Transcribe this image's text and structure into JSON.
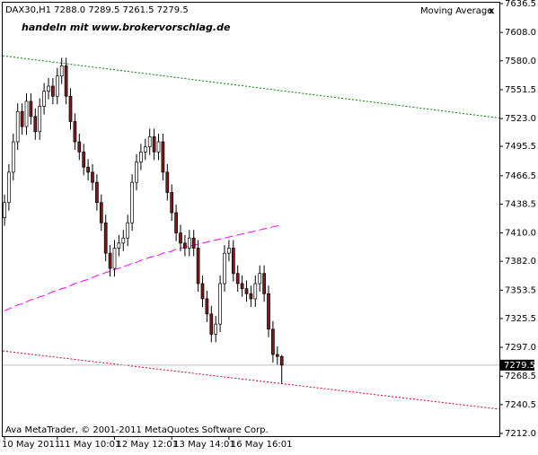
{
  "chart_data": {
    "type": "candlestick",
    "title": "DAX30,H1  7288.0 7289.5 7261.5 7279.5",
    "annotation": "handeln mit www.brokervorschlag.de",
    "annotation_color": "#ff9900",
    "indicator_close": "x",
    "copyright": "Ava MetaTrader, © 2001-2011 MetaQuotes Software Corp.",
    "categories": [
      "10 May 2011",
      null,
      null,
      null,
      null,
      null,
      null,
      null,
      null,
      null,
      null,
      null,
      "11 May 10:01",
      null,
      null,
      null,
      null,
      null,
      null,
      null,
      null,
      null,
      null,
      null,
      null,
      "12 May 12:01",
      null,
      null,
      null,
      null,
      null,
      null,
      null,
      null,
      null,
      null,
      null,
      null,
      "13 May 14:01",
      null,
      null,
      null,
      null,
      null,
      null,
      null,
      null,
      null,
      null,
      null,
      null,
      "16 May 16:01",
      null,
      null,
      null,
      null,
      null,
      null,
      null,
      null,
      null,
      null,
      null,
      null
    ],
    "open": [
      7425,
      7440,
      7470,
      7500,
      7530,
      7515,
      7540,
      7525,
      7510,
      7535,
      7550,
      7555,
      7545,
      7565,
      7575,
      7545,
      7520,
      7500,
      7490,
      7475,
      7470,
      7460,
      7440,
      7420,
      7390,
      7375,
      7395,
      7400,
      7405,
      7420,
      7460,
      7480,
      7490,
      7495,
      7505,
      7490,
      7500,
      7470,
      7450,
      7430,
      7410,
      7400,
      7395,
      7405,
      7395,
      7360,
      7345,
      7330,
      7310,
      7320,
      7360,
      7390,
      7395,
      7370,
      7360,
      7355,
      7350,
      7345,
      7360,
      7370,
      7350,
      7315,
      7290,
      7288
    ],
    "high": [
      7448,
      7478,
      7508,
      7538,
      7538,
      7548,
      7548,
      7533,
      7543,
      7558,
      7563,
      7563,
      7573,
      7583,
      7583,
      7553,
      7528,
      7508,
      7498,
      7483,
      7478,
      7468,
      7448,
      7428,
      7398,
      7403,
      7408,
      7413,
      7428,
      7468,
      7488,
      7498,
      7503,
      7513,
      7513,
      7508,
      7508,
      7478,
      7458,
      7438,
      7418,
      7408,
      7413,
      7413,
      7403,
      7368,
      7353,
      7338,
      7328,
      7368,
      7398,
      7403,
      7403,
      7378,
      7368,
      7363,
      7358,
      7368,
      7378,
      7378,
      7358,
      7323,
      7298,
      7289.5
    ],
    "low": [
      7417,
      7432,
      7462,
      7492,
      7507,
      7507,
      7517,
      7502,
      7502,
      7527,
      7542,
      7537,
      7537,
      7557,
      7537,
      7512,
      7492,
      7482,
      7467,
      7462,
      7452,
      7432,
      7412,
      7382,
      7367,
      7367,
      7387,
      7392,
      7397,
      7412,
      7452,
      7472,
      7482,
      7487,
      7482,
      7482,
      7462,
      7442,
      7422,
      7402,
      7392,
      7387,
      7387,
      7387,
      7352,
      7337,
      7322,
      7302,
      7302,
      7312,
      7352,
      7382,
      7362,
      7352,
      7347,
      7342,
      7337,
      7337,
      7352,
      7342,
      7307,
      7282,
      7280,
      7261.5
    ],
    "close": [
      7440,
      7470,
      7500,
      7530,
      7515,
      7540,
      7525,
      7510,
      7535,
      7550,
      7555,
      7545,
      7565,
      7575,
      7545,
      7520,
      7500,
      7490,
      7475,
      7470,
      7460,
      7440,
      7420,
      7390,
      7375,
      7395,
      7400,
      7405,
      7420,
      7460,
      7480,
      7490,
      7495,
      7505,
      7490,
      7500,
      7470,
      7450,
      7430,
      7410,
      7400,
      7395,
      7405,
      7395,
      7360,
      7345,
      7330,
      7310,
      7320,
      7360,
      7390,
      7395,
      7370,
      7360,
      7355,
      7350,
      7345,
      7360,
      7370,
      7350,
      7315,
      7290,
      7288,
      7279.5
    ],
    "bull_color": "#ffffff",
    "bear_color": "#7a1a1a",
    "series": [
      {
        "name": "Moving Average",
        "color": "#ff00ff",
        "values": [
          7333,
          7335,
          7337,
          7339,
          7340,
          7342,
          7344,
          7345,
          7347,
          7348,
          7350,
          7352,
          7353,
          7355,
          7356,
          7358,
          7360,
          7361,
          7363,
          7364,
          7366,
          7368,
          7369,
          7371,
          7372,
          7374,
          7375,
          7377,
          7378,
          7380,
          7381,
          7383,
          7384,
          7386,
          7387,
          7388,
          7390,
          7391,
          7392,
          7394,
          7395,
          7396,
          7397,
          7398,
          7399,
          7400,
          7401,
          7402,
          7403,
          7404,
          7405,
          7406,
          7407,
          7408,
          7409,
          7410,
          7411,
          7412,
          7413,
          7414,
          7415,
          7416,
          7417,
          7418
        ]
      }
    ],
    "trendlines": [
      {
        "color": "#008000",
        "values": [
          7585,
          7523.5
        ]
      },
      {
        "color": "#cc0033",
        "values": [
          7293.5,
          7236
        ]
      }
    ],
    "ylim": [
      7212,
      7636.5
    ],
    "yticks": [
      7636.5,
      {
        "value": 7608,
        "label": "7608.0"
      },
      {
        "value": 7580,
        "label": "7580.0"
      },
      7551.5,
      {
        "value": 7523,
        "label": "7523.0"
      },
      7495.5,
      7466.5,
      7438.5,
      {
        "value": 7410,
        "label": "7410.0"
      },
      {
        "value": 7382,
        "label": "7382.0"
      },
      7353.5,
      7325.5,
      {
        "value": 7297,
        "label": "7297.0"
      },
      7268.5,
      7240.5,
      {
        "value": 7212,
        "label": "7212.0"
      }
    ]
  }
}
